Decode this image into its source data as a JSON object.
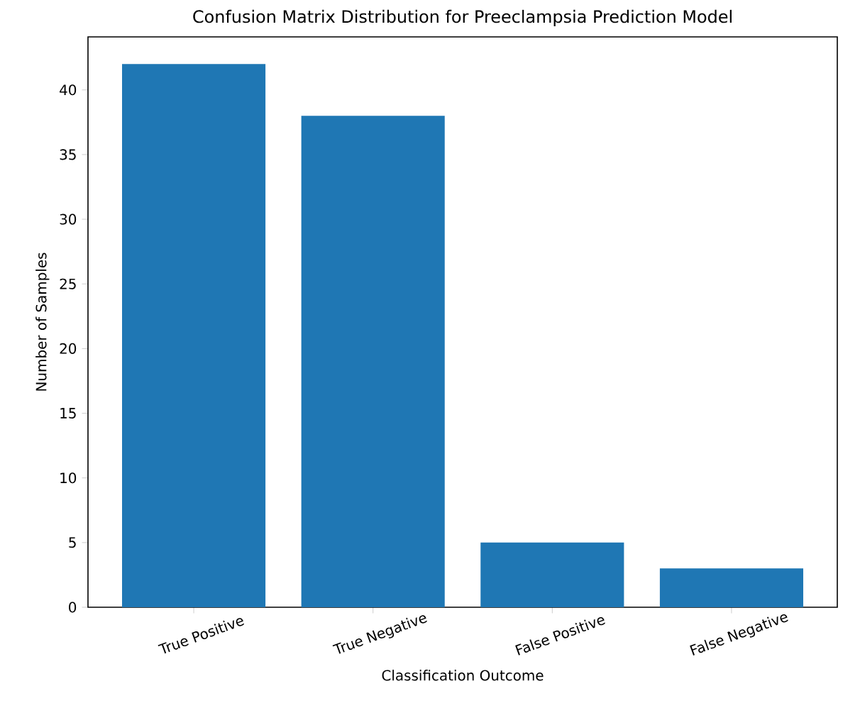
{
  "chart_data": {
    "type": "bar",
    "title": "Confusion Matrix Distribution for Preeclampsia Prediction Model",
    "xlabel": "Classification Outcome",
    "ylabel": "Number of Samples",
    "categories": [
      "True Positive",
      "True Negative",
      "False Positive",
      "False Negative"
    ],
    "values": [
      42,
      38,
      5,
      3
    ],
    "color": "#1f77b4",
    "ylim": [
      0,
      44.1
    ],
    "yticks": [
      0,
      5,
      10,
      15,
      20,
      25,
      30,
      35,
      40
    ],
    "grid": false
  }
}
